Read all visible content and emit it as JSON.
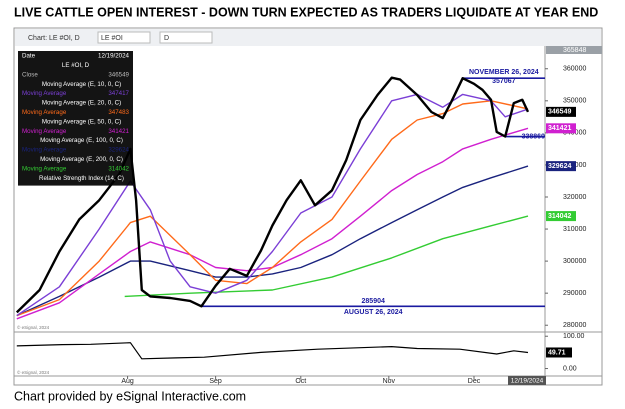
{
  "title": "LIVE CATTLE OPEN INTEREST -   DOWN TURN EXPECTED AS TRADERS LIQUIDATE AT YEAR END",
  "footer": "Chart provided by eSignal Interactive.com",
  "toolbar": {
    "chart": "Chart: LE #OI, D",
    "symbol": "LE #OI",
    "interval": "D"
  },
  "chart_data": [
    {
      "type": "line",
      "xlim": [
        173,
        360
      ],
      "xticks": [
        {
          "value": 213,
          "label": "Aug"
        },
        {
          "value": 244,
          "label": "Sep"
        },
        {
          "value": 274,
          "label": "Oct"
        },
        {
          "value": 305,
          "label": "Nov"
        },
        {
          "value": 335,
          "label": "Dec"
        }
      ],
      "ylim": [
        278200,
        365848
      ],
      "yticks": [
        280000,
        290000,
        300000,
        310000,
        320000,
        330000,
        340000,
        350000,
        360000
      ],
      "date_label": "12/19/2024",
      "copyright": "© eSignal, 2024",
      "series": [
        {
          "name": "Close",
          "color": "#000000",
          "width": 2.4,
          "tag": true,
          "x": [
            174,
            182,
            189,
            196,
            203,
            210,
            214,
            216,
            218,
            221,
            228,
            235,
            239,
            244,
            249,
            255,
            260,
            264,
            269,
            274,
            279,
            285,
            290,
            295,
            301,
            306,
            309,
            315,
            320,
            324,
            327,
            331,
            335,
            338,
            341,
            343,
            346,
            349,
            352,
            354
          ],
          "values": [
            284000,
            291000,
            303000,
            313000,
            319000,
            327000,
            335000,
            319000,
            291000,
            289000,
            288500,
            287600,
            285904,
            292300,
            297600,
            295400,
            303300,
            311100,
            319000,
            325200,
            317400,
            322100,
            331500,
            344000,
            351800,
            357200,
            356600,
            351800,
            346500,
            344600,
            349700,
            357067,
            355300,
            353400,
            350300,
            340300,
            338860,
            349300,
            350300,
            346549
          ]
        },
        {
          "name": "Moving Average (E, 10, 0, C)",
          "color": "#7b3fd6",
          "width": 1.4,
          "tag": false,
          "x": [
            174,
            189,
            203,
            214,
            221,
            228,
            235,
            244,
            255,
            264,
            274,
            285,
            295,
            306,
            315,
            324,
            331,
            341,
            346,
            354
          ],
          "values": [
            283000,
            292000,
            310000,
            325000,
            316000,
            300000,
            292000,
            290000,
            294000,
            303000,
            315000,
            320000,
            335000,
            350000,
            352000,
            348000,
            352000,
            350000,
            345000,
            347417
          ]
        },
        {
          "name": "Moving Average (E, 20, 0, C)",
          "color": "#ff6a1a",
          "width": 1.4,
          "tag": false,
          "x": [
            174,
            189,
            203,
            214,
            221,
            235,
            244,
            255,
            264,
            274,
            285,
            295,
            306,
            315,
            324,
            331,
            341,
            354
          ],
          "values": [
            283000,
            288000,
            300000,
            312000,
            314000,
            302000,
            294000,
            293000,
            298000,
            306000,
            313000,
            325000,
            338000,
            344000,
            346000,
            349000,
            350000,
            347483
          ]
        },
        {
          "name": "Moving Average (E, 50, 0, C)",
          "color": "#d020d0",
          "width": 1.4,
          "tag": true,
          "x": [
            174,
            189,
            203,
            214,
            221,
            235,
            244,
            255,
            264,
            274,
            285,
            295,
            306,
            315,
            324,
            331,
            341,
            354
          ],
          "values": [
            282000,
            287000,
            296000,
            303000,
            306000,
            302000,
            298000,
            297000,
            298000,
            302000,
            307000,
            314000,
            322000,
            327000,
            331000,
            335000,
            338000,
            341421
          ]
        },
        {
          "name": "Moving Average (E, 100, 0, C)",
          "color": "#1a237e",
          "width": 1.4,
          "tag": true,
          "x": [
            174,
            189,
            203,
            214,
            221,
            235,
            244,
            255,
            264,
            274,
            285,
            295,
            306,
            315,
            324,
            331,
            341,
            354
          ],
          "values": [
            283000,
            289000,
            295000,
            300000,
            300000,
            297000,
            295000,
            295000,
            296000,
            298000,
            302000,
            307000,
            312000,
            316000,
            320000,
            323000,
            326000,
            329624
          ]
        },
        {
          "name": "Moving Average (E, 200, 0, C)",
          "color": "#33cc33",
          "width": 1.4,
          "tag": true,
          "x": [
            212,
            235,
            264,
            285,
            306,
            324,
            341,
            354
          ],
          "values": [
            289000,
            290000,
            291000,
            295000,
            301000,
            307000,
            311000,
            314042
          ]
        }
      ],
      "levels": [
        {
          "value": 357067,
          "from": 331,
          "label": "NOVEMBER 26, 2024"
        },
        {
          "value": 338860,
          "from": 346
        },
        {
          "value": 285904,
          "from": 239,
          "label": "AUGUST 26, 2024"
        }
      ],
      "legend": {
        "date_label": "Date",
        "symbol": "LE #OI, D",
        "value_label": "Moving Average"
      }
    },
    {
      "type": "line",
      "name": "Relative Strength Index (14, C)",
      "xlim": [
        173,
        360
      ],
      "ylim": [
        -20,
        110
      ],
      "yticks": [
        {
          "value": 100,
          "label": "100.00"
        },
        {
          "value": 0,
          "label": "0.00"
        }
      ],
      "color": "#000000",
      "x": [
        174,
        190,
        200,
        214,
        218,
        230,
        240,
        260,
        280,
        306,
        315,
        330,
        343,
        349,
        354
      ],
      "values": [
        70,
        74,
        75,
        80,
        30,
        33,
        35,
        50,
        60,
        68,
        62,
        60,
        45,
        55,
        49.71
      ]
    }
  ]
}
